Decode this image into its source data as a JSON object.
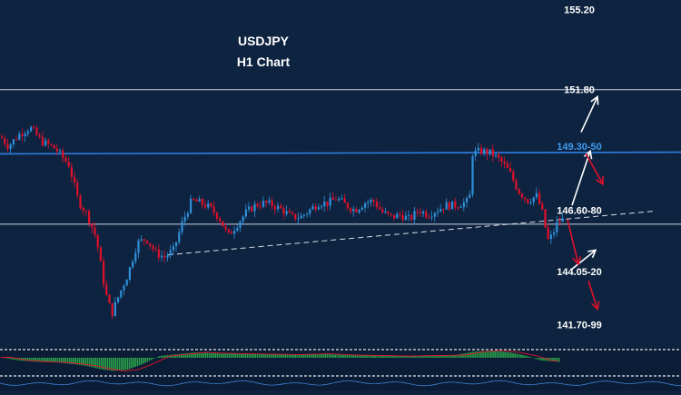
{
  "colors": {
    "background": "#0e2340",
    "up_candle": "#2f8fd8",
    "down_candle": "#e0102a",
    "resistance_line": "#2f7fe0",
    "level_line": "#c9d2dc",
    "trend_dashed": "#d7dde4",
    "bullish_arrow": "#ffffff",
    "bearish_arrow": "#e0102a",
    "macd_bars": "#2aa04a",
    "macd_signal": "#e0102a"
  },
  "chart_data": {
    "type": "candlestick",
    "title": "USDJPY",
    "subtitle": "H1 Chart",
    "grid": false,
    "ylim": [
      140.9,
      155.6
    ],
    "price_labels": [
      {
        "text": "155.20",
        "value": 155.2,
        "color": "#ffffff"
      },
      {
        "text": "151.80",
        "value": 151.8,
        "color": "#ffffff"
      },
      {
        "text": "149.30-50",
        "value": 149.4,
        "color": "#3d9bf0"
      },
      {
        "text": "146.60-80",
        "value": 146.7,
        "color": "#ffffff"
      },
      {
        "text": "144.05-20",
        "value": 144.1,
        "color": "#ffffff"
      },
      {
        "text": "141.70-99",
        "value": 141.85,
        "color": "#ffffff"
      }
    ],
    "horizontal_levels": [
      151.8,
      146.1
    ],
    "close_path": [
      [
        0,
        149.8
      ],
      [
        8,
        149.4
      ],
      [
        20,
        149.9
      ],
      [
        32,
        150.2
      ],
      [
        45,
        149.6
      ],
      [
        60,
        149.3
      ],
      [
        75,
        148.6
      ],
      [
        85,
        147.1
      ],
      [
        95,
        146.5
      ],
      [
        105,
        145.5
      ],
      [
        115,
        143.2
      ],
      [
        122,
        142.3
      ],
      [
        130,
        143.1
      ],
      [
        140,
        144.0
      ],
      [
        150,
        145.3
      ],
      [
        160,
        145.5
      ],
      [
        170,
        144.9
      ],
      [
        180,
        144.7
      ],
      [
        190,
        145.0
      ],
      [
        200,
        146.2
      ],
      [
        210,
        147.1
      ],
      [
        220,
        147.0
      ],
      [
        230,
        146.8
      ],
      [
        240,
        146.4
      ],
      [
        250,
        145.6
      ],
      [
        260,
        146.1
      ],
      [
        270,
        146.6
      ],
      [
        280,
        146.9
      ],
      [
        290,
        147.0
      ],
      [
        300,
        146.9
      ],
      [
        310,
        146.7
      ],
      [
        320,
        146.4
      ],
      [
        330,
        146.4
      ],
      [
        340,
        146.7
      ],
      [
        350,
        147.0
      ],
      [
        360,
        147.0
      ],
      [
        370,
        147.2
      ],
      [
        380,
        146.9
      ],
      [
        390,
        146.7
      ],
      [
        400,
        147.0
      ],
      [
        410,
        147.1
      ],
      [
        420,
        146.6
      ],
      [
        430,
        146.4
      ],
      [
        440,
        146.5
      ],
      [
        450,
        146.3
      ],
      [
        460,
        146.7
      ],
      [
        470,
        146.5
      ],
      [
        480,
        146.7
      ],
      [
        490,
        146.9
      ],
      [
        500,
        146.9
      ],
      [
        510,
        147.0
      ],
      [
        516,
        147.1
      ],
      [
        518,
        149.1
      ],
      [
        530,
        149.2
      ],
      [
        540,
        149.1
      ],
      [
        550,
        148.8
      ],
      [
        560,
        148.3
      ],
      [
        570,
        147.5
      ],
      [
        580,
        147.1
      ],
      [
        590,
        147.3
      ],
      [
        597,
        146.5
      ],
      [
        602,
        145.4
      ],
      [
        607,
        145.6
      ],
      [
        613,
        146.2
      ],
      [
        620,
        146.3
      ]
    ],
    "annotations": {
      "resistance_line": [
        [
          0,
          149.08
        ],
        [
          750,
          149.15
        ]
      ],
      "dashed_trend_line": [
        [
          185,
          144.8
        ],
        [
          720,
          146.65
        ]
      ],
      "bullish_arrows": [
        {
          "from": [
            640,
            150.0
          ],
          "to": [
            658,
            151.5
          ]
        },
        {
          "from": [
            630,
            146.9
          ],
          "to": [
            650,
            149.2
          ]
        },
        {
          "from": [
            630,
            144.2
          ],
          "to": [
            656,
            145.0
          ]
        }
      ],
      "bearish_arrows": [
        {
          "from": [
            645,
            149.1
          ],
          "to": [
            664,
            147.8
          ]
        },
        {
          "from": [
            625,
            146.3
          ],
          "to": [
            637,
            144.4
          ]
        },
        {
          "from": [
            648,
            143.7
          ],
          "to": [
            658,
            142.5
          ]
        }
      ]
    },
    "indicator_panel": {
      "type": "macd-histogram",
      "histogram": [
        [
          0,
          0.1
        ],
        [
          20,
          -0.6
        ],
        [
          40,
          -0.9
        ],
        [
          60,
          -1.0
        ],
        [
          80,
          -1.4
        ],
        [
          95,
          -1.8
        ],
        [
          110,
          -2.5
        ],
        [
          125,
          -2.9
        ],
        [
          140,
          -2.6
        ],
        [
          155,
          -1.5
        ],
        [
          175,
          0.4
        ],
        [
          195,
          0.8
        ],
        [
          215,
          1.2
        ],
        [
          235,
          1.0
        ],
        [
          260,
          0.9
        ],
        [
          290,
          0.8
        ],
        [
          320,
          0.7
        ],
        [
          350,
          0.9
        ],
        [
          380,
          0.6
        ],
        [
          410,
          0.5
        ],
        [
          440,
          0.4
        ],
        [
          470,
          0.5
        ],
        [
          500,
          0.6
        ],
        [
          520,
          1.3
        ],
        [
          540,
          1.6
        ],
        [
          560,
          1.2
        ],
        [
          580,
          0.4
        ],
        [
          595,
          -0.6
        ],
        [
          615,
          -0.9
        ]
      ]
    }
  }
}
